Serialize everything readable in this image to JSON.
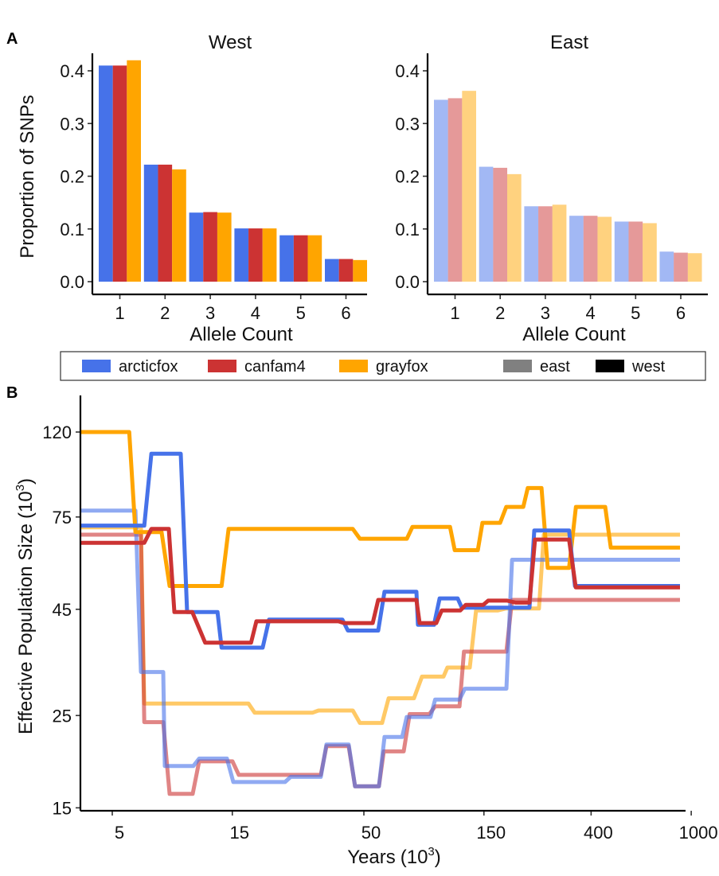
{
  "figure": {
    "panel_a_tag": "A",
    "panel_b_tag": "B"
  },
  "colors": {
    "arcticfox": "#4672E9",
    "canfam4": "#CC3333",
    "grayfox": "#FFA500",
    "east_legend": "#808080",
    "west_legend": "#000000",
    "east_opacity": 0.5
  },
  "legend": {
    "items": [
      {
        "key": "arcticfox",
        "label": "arcticfox"
      },
      {
        "key": "canfam4",
        "label": "canfam4"
      },
      {
        "key": "grayfox",
        "label": "grayfox"
      },
      {
        "key": "east",
        "label": "east"
      },
      {
        "key": "west",
        "label": "west"
      }
    ]
  },
  "chart_data": [
    {
      "type": "bar",
      "panel": "A",
      "title": "West",
      "xlabel": "Allele Count",
      "ylabel": "Proportion of SNPs",
      "ylim": [
        0,
        0.43
      ],
      "yticks": [
        "0.0",
        "0.1",
        "0.2",
        "0.3",
        "0.4"
      ],
      "ytick_values": [
        0,
        0.1,
        0.2,
        0.3,
        0.4
      ],
      "categories": [
        "1",
        "2",
        "3",
        "4",
        "5",
        "6"
      ],
      "series": [
        {
          "name": "arcticfox",
          "values": [
            0.41,
            0.222,
            0.131,
            0.101,
            0.088,
            0.043
          ]
        },
        {
          "name": "canfam4",
          "values": [
            0.41,
            0.222,
            0.132,
            0.101,
            0.088,
            0.043
          ]
        },
        {
          "name": "grayfox",
          "values": [
            0.42,
            0.213,
            0.131,
            0.101,
            0.088,
            0.041
          ]
        }
      ],
      "grid": false
    },
    {
      "type": "bar",
      "panel": "A",
      "title": "East",
      "xlabel": "Allele Count",
      "ylabel": "",
      "ylim": [
        0,
        0.43
      ],
      "yticks": [
        "0.0",
        "0.1",
        "0.2",
        "0.3",
        "0.4"
      ],
      "ytick_values": [
        0,
        0.1,
        0.2,
        0.3,
        0.4
      ],
      "categories": [
        "1",
        "2",
        "3",
        "4",
        "5",
        "6"
      ],
      "series": [
        {
          "name": "arcticfox",
          "values": [
            0.345,
            0.218,
            0.143,
            0.125,
            0.114,
            0.057
          ]
        },
        {
          "name": "canfam4",
          "values": [
            0.348,
            0.216,
            0.143,
            0.125,
            0.114,
            0.055
          ]
        },
        {
          "name": "grayfox",
          "values": [
            0.362,
            0.204,
            0.146,
            0.123,
            0.111,
            0.054
          ]
        }
      ],
      "grid": false
    },
    {
      "type": "line",
      "panel": "B",
      "title": "",
      "xlabel": "Years",
      "xlabel_unit_base": "10",
      "xlabel_unit_exp": "3",
      "ylabel": "Effective Population Size",
      "ylabel_unit_base": "10",
      "ylabel_unit_exp": "3",
      "xscale": "log",
      "yscale": "log",
      "xlim": [
        3.73,
        1100
      ],
      "ylim": [
        15,
        140
      ],
      "xticks": [
        "5",
        "15",
        "50",
        "150",
        "400",
        "1000"
      ],
      "xtick_values": [
        5,
        15,
        50,
        150,
        400,
        1000
      ],
      "yticks": [
        "15",
        "25",
        "45",
        "75",
        "120"
      ],
      "ytick_values": [
        15,
        25,
        45,
        75,
        120
      ],
      "grid": false,
      "series": [
        {
          "name": "grayfox-east",
          "species": "grayfox",
          "region": "east",
          "points": [
            [
              3.73,
              70.8
            ],
            [
              6.5,
              70.8
            ],
            [
              6.7,
              26.7
            ],
            [
              17.4,
              26.7
            ],
            [
              18.4,
              25.4
            ],
            [
              31.3,
              25.4
            ],
            [
              33,
              25.7
            ],
            [
              45.2,
              25.7
            ],
            [
              48.2,
              24
            ],
            [
              59.1,
              24
            ],
            [
              62.7,
              27.5
            ],
            [
              79.1,
              27.5
            ],
            [
              85.1,
              31
            ],
            [
              103.6,
              31
            ],
            [
              107.4,
              32.6
            ],
            [
              131.8,
              32.6
            ],
            [
              139.6,
              44.7
            ],
            [
              170,
              44.7
            ],
            [
              183,
              45.2
            ],
            [
              248.3,
              45.2
            ],
            [
              259.5,
              68
            ],
            [
              902,
              68
            ]
          ]
        },
        {
          "name": "canfam4-east",
          "species": "canfam4",
          "region": "east",
          "points": [
            [
              3.73,
              68
            ],
            [
              6.5,
              68
            ],
            [
              6.7,
              24.1
            ],
            [
              7.97,
              24.1
            ],
            [
              8.45,
              16.2
            ],
            [
              10.44,
              16.2
            ],
            [
              11.07,
              19.4
            ],
            [
              15.03,
              19.4
            ],
            [
              15.92,
              18
            ],
            [
              33.7,
              18
            ],
            [
              35.5,
              21.1
            ],
            [
              43.5,
              21.1
            ],
            [
              46.1,
              16.9
            ],
            [
              57.4,
              16.9
            ],
            [
              60,
              20.5
            ],
            [
              72,
              20.5
            ],
            [
              76,
              25.2
            ],
            [
              91,
              25.2
            ],
            [
              96,
              26.3
            ],
            [
              120,
              26.3
            ],
            [
              125,
              35.6
            ],
            [
              184.2,
              35.6
            ],
            [
              194.1,
              47.4
            ],
            [
              902,
              47.4
            ]
          ]
        },
        {
          "name": "arcticfox-east",
          "species": "arcticfox",
          "region": "east",
          "points": [
            [
              3.73,
              77.7
            ],
            [
              6.18,
              77.7
            ],
            [
              6.5,
              31.8
            ],
            [
              7.97,
              31.8
            ],
            [
              8.09,
              18.9
            ],
            [
              10.5,
              18.9
            ],
            [
              11.07,
              19.7
            ],
            [
              14.28,
              19.7
            ],
            [
              15.14,
              17.3
            ],
            [
              24.3,
              17.3
            ],
            [
              25.6,
              17.8
            ],
            [
              33.7,
              17.8
            ],
            [
              35.5,
              21.3
            ],
            [
              43.5,
              21.3
            ],
            [
              46.1,
              16.9
            ],
            [
              57.4,
              16.9
            ],
            [
              60.4,
              22.2
            ],
            [
              71,
              22.2
            ],
            [
              74,
              24.8
            ],
            [
              92,
              24.8
            ],
            [
              96,
              27.3
            ],
            [
              120,
              27.3
            ],
            [
              126,
              29
            ],
            [
              184.2,
              29
            ],
            [
              194.1,
              59.2
            ],
            [
              902,
              59.2
            ]
          ]
        },
        {
          "name": "grayfox-west",
          "species": "grayfox",
          "region": "west",
          "points": [
            [
              3.73,
              120
            ],
            [
              5.84,
              120
            ],
            [
              6.18,
              69
            ],
            [
              7.85,
              69
            ],
            [
              8.45,
              51.2
            ],
            [
              13.6,
              51.2
            ],
            [
              14.5,
              70.2
            ],
            [
              45.2,
              70.2
            ],
            [
              48.2,
              66.5
            ],
            [
              74.1,
              66.5
            ],
            [
              78,
              71
            ],
            [
              110,
              71
            ],
            [
              114.8,
              62.4
            ],
            [
              141.8,
              62.4
            ],
            [
              148,
              72.6
            ],
            [
              174,
              72.6
            ],
            [
              184,
              79.3
            ],
            [
              215,
              79.3
            ],
            [
              224,
              88
            ],
            [
              254,
              88
            ],
            [
              269,
              56.6
            ],
            [
              327,
              56.6
            ],
            [
              348,
              79.3
            ],
            [
              455,
              79.3
            ],
            [
              479,
              63.3
            ],
            [
              902,
              63.3
            ]
          ]
        },
        {
          "name": "arcticfox-west",
          "species": "arcticfox",
          "region": "west",
          "points": [
            [
              3.73,
              71.5
            ],
            [
              6.7,
              71.5
            ],
            [
              7.15,
              106.4
            ],
            [
              9.36,
              106.4
            ],
            [
              9.92,
              44.3
            ],
            [
              13.1,
              44.3
            ],
            [
              13.6,
              36.4
            ],
            [
              19.8,
              36.4
            ],
            [
              21,
              42.5
            ],
            [
              41.1,
              42.5
            ],
            [
              43.2,
              40
            ],
            [
              57,
              40
            ],
            [
              60.4,
              49.6
            ],
            [
              80.9,
              49.6
            ],
            [
              82,
              41.3
            ],
            [
              95,
              41.3
            ],
            [
              100,
              47.8
            ],
            [
              118,
              47.8
            ],
            [
              122.5,
              45.4
            ],
            [
              227.6,
              45.4
            ],
            [
              237.7,
              69.6
            ],
            [
              327,
              69.6
            ],
            [
              345,
              51.2
            ],
            [
              902,
              51.2
            ]
          ]
        },
        {
          "name": "canfam4-west",
          "species": "canfam4",
          "region": "west",
          "points": [
            [
              3.73,
              65
            ],
            [
              6.7,
              65
            ],
            [
              7.15,
              70.2
            ],
            [
              8.39,
              70.2
            ],
            [
              8.83,
              44.3
            ],
            [
              10.4,
              44.3
            ],
            [
              11.7,
              37.4
            ],
            [
              17.8,
              37.4
            ],
            [
              18.7,
              42.1
            ],
            [
              39.6,
              42.1
            ],
            [
              41.7,
              41.7
            ],
            [
              54.2,
              41.7
            ],
            [
              57,
              47.4
            ],
            [
              80.9,
              47.4
            ],
            [
              83.3,
              41.7
            ],
            [
              97,
              41.7
            ],
            [
              102,
              44.7
            ],
            [
              120.8,
              44.7
            ],
            [
              127,
              46.1
            ],
            [
              149,
              46.1
            ],
            [
              155.9,
              47.2
            ],
            [
              185.7,
              47.2
            ],
            [
              201,
              46.7
            ],
            [
              227.6,
              46.7
            ],
            [
              239.4,
              66.2
            ],
            [
              327,
              66.2
            ],
            [
              347.6,
              50.8
            ],
            [
              902,
              50.8
            ]
          ]
        }
      ]
    }
  ]
}
